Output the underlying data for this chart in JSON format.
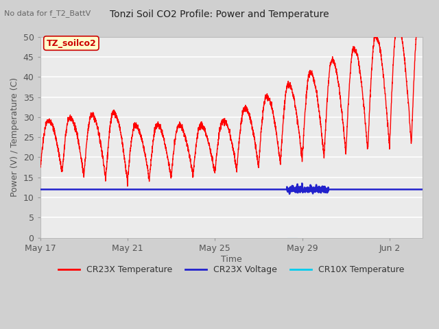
{
  "title": "Tonzi Soil CO2 Profile: Power and Temperature",
  "subtitle": "No data for f_T2_BattV",
  "ylabel": "Power (V) / Temperature (C)",
  "xlabel": "Time",
  "ylim": [
    0,
    50
  ],
  "xtick_labels": [
    "May 17",
    "May 21",
    "May 25",
    "May 29",
    "Jun 2"
  ],
  "xtick_positions": [
    0,
    4,
    8,
    12,
    16
  ],
  "xlim": [
    0,
    17.5
  ],
  "ytick_positions": [
    0,
    5,
    10,
    15,
    20,
    25,
    30,
    35,
    40,
    45,
    50
  ],
  "fig_bg_color": "#d0d0d0",
  "plot_bg_color": "#ebebeb",
  "grid_color": "#ffffff",
  "legend_entries": [
    "CR23X Temperature",
    "CR23X Voltage",
    "CR10X Temperature"
  ],
  "legend_colors": [
    "#ff0000",
    "#2222cc",
    "#00ccee"
  ],
  "voltage_value": 12.0,
  "annotation_box": "TZ_soilco2",
  "annotation_box_facecolor": "#ffffcc",
  "annotation_box_edgecolor": "#cc0000",
  "annotation_text_color": "#cc0000"
}
